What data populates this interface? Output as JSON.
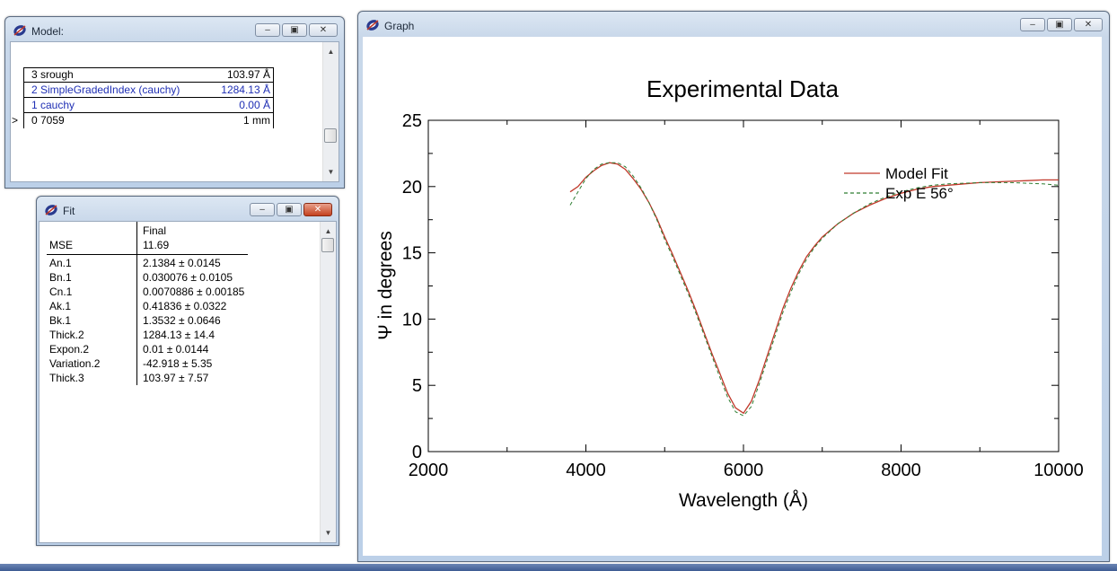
{
  "model_window": {
    "title": "Model:",
    "layers": [
      {
        "marker": "",
        "name": "3 srough",
        "value": "103.97 Å",
        "color": "black"
      },
      {
        "marker": "",
        "name": "2 SimpleGradedIndex (cauchy)",
        "value": "1284.13 Å",
        "color": "#1f2fb4"
      },
      {
        "marker": "",
        "name": "1 cauchy",
        "value": "0.00 Å",
        "color": "#1f2fb4"
      },
      {
        "marker": ">",
        "name": "0 7059",
        "value": "1 mm",
        "color": "black"
      }
    ]
  },
  "fit_window": {
    "title": "Fit",
    "column_header": "Final",
    "mse_label": "MSE",
    "mse_value": "11.69",
    "params": [
      {
        "name": "An.1",
        "value": "2.1384 ± 0.0145"
      },
      {
        "name": "Bn.1",
        "value": "0.030076 ± 0.0105"
      },
      {
        "name": "Cn.1",
        "value": "0.0070886 ± 0.00185"
      },
      {
        "name": "Ak.1",
        "value": "0.41836 ± 0.0322"
      },
      {
        "name": "Bk.1",
        "value": "1.3532 ± 0.0646"
      },
      {
        "name": "Thick.2",
        "value": "1284.13 ± 14.4"
      },
      {
        "name": "Expon.2",
        "value": "0.01 ± 0.0144"
      },
      {
        "name": "Variation.2",
        "value": "-42.918 ± 5.35"
      },
      {
        "name": "Thick.3",
        "value": "103.97 ± 7.57"
      }
    ]
  },
  "graph_window": {
    "title": "Graph"
  },
  "chart_data": {
    "type": "line",
    "title": "Experimental Data",
    "xlabel": "Wavelength (Å)",
    "ylabel": "Ψ in degrees",
    "xlim": [
      2000,
      10000
    ],
    "ylim": [
      0,
      25
    ],
    "xticks": [
      2000,
      4000,
      6000,
      8000,
      10000
    ],
    "xtick_labels": [
      "2000",
      "4000",
      "6000",
      "8000",
      "10000"
    ],
    "yticks": [
      0,
      5,
      10,
      15,
      20,
      25
    ],
    "ytick_labels": [
      "0",
      "5",
      "10",
      "15",
      "20",
      "25"
    ],
    "legend_position": "top-right",
    "grid": false,
    "series": [
      {
        "name": "Model Fit",
        "color": "#c0392b",
        "style": "solid",
        "x": [
          3800,
          3900,
          4000,
          4100,
          4200,
          4300,
          4400,
          4500,
          4600,
          4700,
          4800,
          4900,
          5000,
          5100,
          5200,
          5300,
          5400,
          5500,
          5600,
          5700,
          5800,
          5900,
          6000,
          6100,
          6200,
          6300,
          6400,
          6500,
          6600,
          6700,
          6800,
          6900,
          7000,
          7200,
          7400,
          7600,
          7800,
          8000,
          8200,
          8400,
          8600,
          8800,
          9000,
          9200,
          9400,
          9600,
          9800,
          10000
        ],
        "y": [
          19.6,
          20.0,
          20.7,
          21.2,
          21.6,
          21.8,
          21.7,
          21.3,
          20.6,
          19.8,
          18.8,
          17.6,
          16.2,
          14.9,
          13.5,
          12.1,
          10.6,
          9.0,
          7.4,
          5.9,
          4.4,
          3.3,
          2.9,
          3.8,
          5.4,
          7.2,
          9.0,
          10.8,
          12.3,
          13.6,
          14.7,
          15.5,
          16.2,
          17.2,
          18.0,
          18.6,
          19.1,
          19.5,
          19.8,
          20.0,
          20.1,
          20.2,
          20.3,
          20.35,
          20.4,
          20.45,
          20.5,
          20.5
        ]
      },
      {
        "name": "Exp E 56°",
        "color": "#2e7d32",
        "style": "dashed",
        "x": [
          3800,
          3900,
          4000,
          4100,
          4200,
          4300,
          4400,
          4500,
          4600,
          4700,
          4800,
          4900,
          5000,
          5100,
          5200,
          5300,
          5400,
          5500,
          5600,
          5700,
          5800,
          5900,
          6000,
          6100,
          6200,
          6300,
          6400,
          6500,
          6600,
          6700,
          6800,
          6900,
          7000,
          7200,
          7400,
          7600,
          7800,
          8000,
          8200,
          8400,
          8600,
          8800,
          9000,
          9200,
          9400,
          9600,
          9800,
          10000
        ],
        "y": [
          18.6,
          19.6,
          20.6,
          21.3,
          21.7,
          21.8,
          21.8,
          21.5,
          20.8,
          19.9,
          18.8,
          17.5,
          16.0,
          14.7,
          13.3,
          11.9,
          10.4,
          8.8,
          7.2,
          5.6,
          4.1,
          3.0,
          2.7,
          3.4,
          5.1,
          6.9,
          8.7,
          10.5,
          12.0,
          13.4,
          14.5,
          15.4,
          16.1,
          17.2,
          18.0,
          18.7,
          19.2,
          19.6,
          19.9,
          20.1,
          20.2,
          20.25,
          20.3,
          20.3,
          20.3,
          20.25,
          20.2,
          20.1
        ]
      }
    ]
  }
}
